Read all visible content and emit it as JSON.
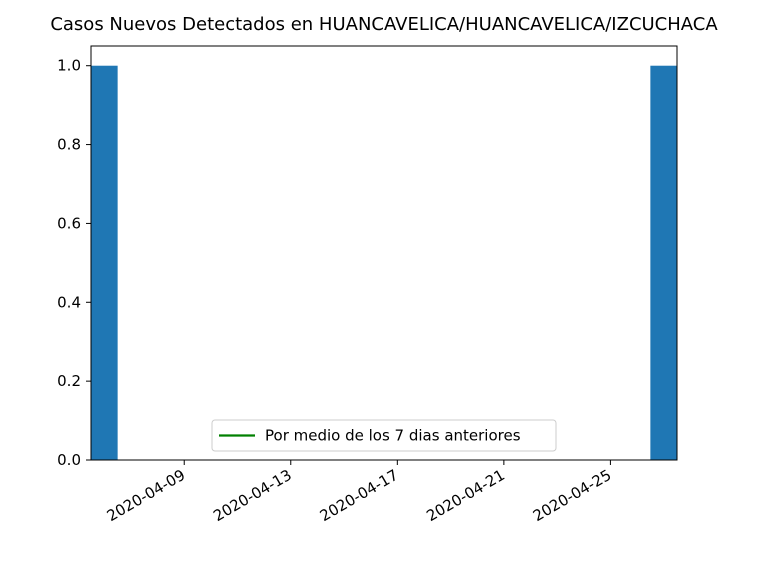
{
  "chart_data": {
    "type": "bar",
    "title": "Casos Nuevos Detectados en HUANCAVELICA/HUANCAVELICA/IZCUCHACA",
    "xlabel": "",
    "ylabel": "",
    "x_axis_type": "date",
    "xlim": [
      "2020-04-06",
      "2020-04-27"
    ],
    "ylim": [
      0,
      1.05
    ],
    "bars": [
      {
        "date": "2020-04-06",
        "value": 1
      },
      {
        "date": "2020-04-27",
        "value": 1
      }
    ],
    "x_ticks": [
      "2020-04-09",
      "2020-04-13",
      "2020-04-17",
      "2020-04-21",
      "2020-04-25"
    ],
    "y_ticks": [
      "0.0",
      "0.2",
      "0.4",
      "0.6",
      "0.8",
      "1.0"
    ],
    "series": [
      {
        "name": "Por medio de los 7 dias anteriores",
        "type": "line",
        "values": []
      }
    ],
    "legend": {
      "position": "lower center",
      "entries": [
        "Por medio de los 7 dias anteriores"
      ]
    },
    "grid": false,
    "colors": {
      "bar": "#1f77b4",
      "line": "#008000"
    }
  }
}
